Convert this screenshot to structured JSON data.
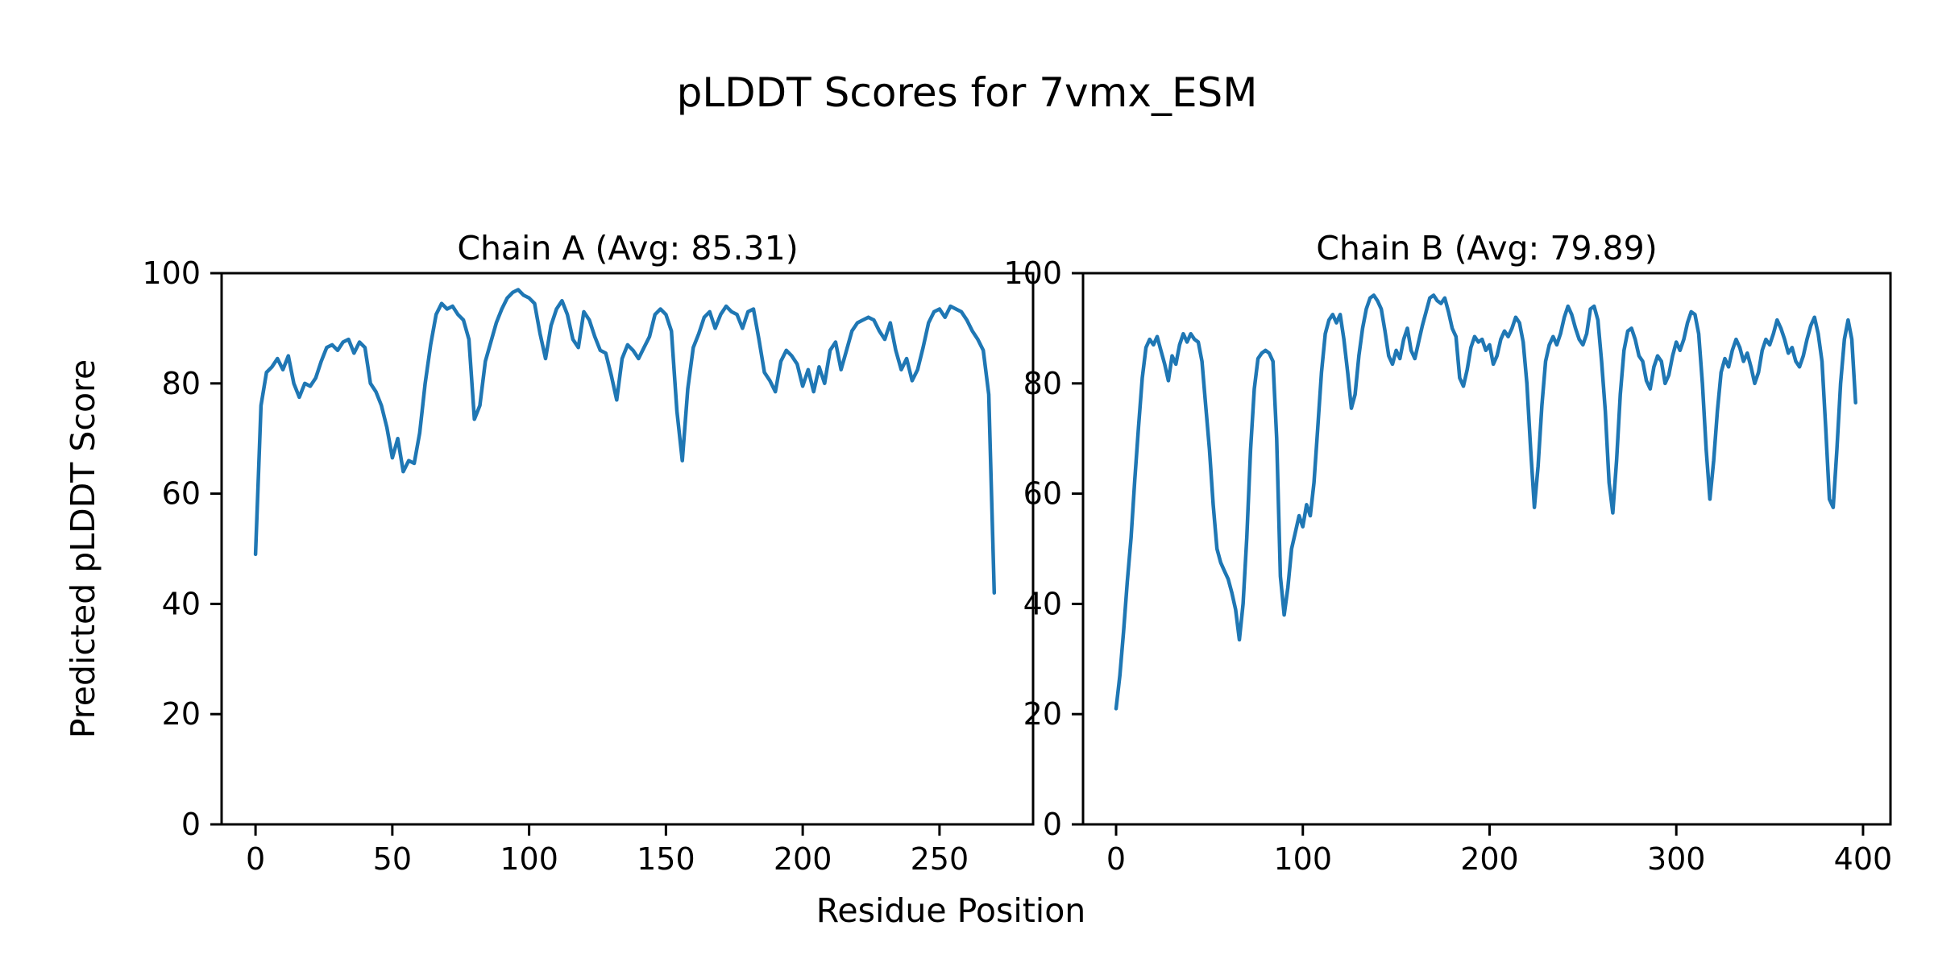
{
  "figure": {
    "title": "pLDDT Scores for 7vmx_ESM",
    "x_axis_label": "Residue Position",
    "y_axis_label": "Predicted pLDDT Score",
    "line_color": "#1f77b4",
    "text_color": "#000000"
  },
  "chart_data": [
    {
      "type": "line",
      "chain": "A",
      "title": "Chain A (Avg: 85.31)",
      "avg": 85.31,
      "xlabel": "Residue Position",
      "ylabel": "Predicted pLDDT Score",
      "grid": false,
      "legend": null,
      "x_start": 0,
      "x_step": 2,
      "xlim": [
        -12.4,
        284.2
      ],
      "ylim": [
        0,
        100
      ],
      "xticks": [
        0,
        50,
        100,
        150,
        200,
        250
      ],
      "yticks": [
        0,
        20,
        40,
        60,
        80,
        100
      ],
      "y": [
        49,
        76,
        82,
        83,
        84.5,
        82.5,
        85,
        80,
        77.5,
        80,
        79.5,
        81,
        84,
        86.5,
        87,
        86,
        87.5,
        88,
        85.5,
        87.5,
        86.5,
        80,
        78.5,
        76,
        72,
        66.5,
        70,
        64,
        66,
        65.5,
        71,
        80,
        87,
        92.5,
        94.5,
        93.5,
        94,
        92.5,
        91.5,
        88,
        73.5,
        76,
        84,
        87.5,
        91,
        93.5,
        95.5,
        96.5,
        97,
        96,
        95.5,
        94.5,
        89,
        84.5,
        90.5,
        93.5,
        95,
        92.5,
        88,
        86.5,
        93,
        91.5,
        88.5,
        86,
        85.5,
        81.5,
        77,
        84.5,
        87,
        86,
        84.5,
        86.5,
        88.5,
        92.5,
        93.5,
        92.5,
        89.5,
        75,
        66,
        79,
        86.5,
        89,
        92,
        93,
        90,
        92.5,
        94,
        93,
        92.5,
        90,
        93,
        93.5,
        88,
        82,
        80.5,
        78.5,
        84,
        86,
        85,
        83.5,
        79.5,
        82.5,
        78.5,
        83,
        80,
        86,
        87.5,
        82.5,
        86,
        89.5,
        91,
        91.5,
        92,
        91.5,
        89.5,
        88,
        91,
        86,
        82.5,
        84.5,
        80.5,
        82.5,
        86.5,
        91,
        93,
        93.5,
        92,
        94,
        93.5,
        93,
        91.5,
        89.5,
        88,
        86,
        78,
        42
      ]
    },
    {
      "type": "line",
      "chain": "B",
      "title": "Chain B (Avg: 79.89)",
      "avg": 79.89,
      "xlabel": "Residue Position",
      "ylabel": "Predicted pLDDT Score",
      "grid": false,
      "legend": null,
      "x_start": 0,
      "x_step": 2,
      "xlim": [
        -17.7,
        414.7
      ],
      "ylim": [
        0,
        100
      ],
      "xticks": [
        0,
        100,
        200,
        300,
        400
      ],
      "yticks": [
        0,
        20,
        40,
        60,
        80,
        100
      ],
      "y": [
        21,
        27,
        35,
        44,
        52,
        62.5,
        72,
        81,
        86.5,
        88,
        87,
        88.5,
        86,
        83.5,
        80.5,
        85,
        83.5,
        87,
        89,
        87.5,
        89,
        88,
        87.5,
        84,
        76,
        68,
        58,
        50,
        47.5,
        46,
        44.5,
        42,
        39,
        33.5,
        40,
        52,
        68,
        79,
        84.5,
        85.5,
        86,
        85.5,
        84,
        70,
        45,
        38,
        43,
        50,
        53,
        56,
        54,
        58,
        56,
        62,
        72,
        82,
        89,
        91.5,
        92.5,
        91,
        92.5,
        88,
        82,
        75.5,
        78,
        85,
        90,
        93.5,
        95.5,
        96,
        95,
        93.5,
        89.5,
        85,
        83.5,
        86,
        84.5,
        88,
        90,
        86,
        84.5,
        87.5,
        90.5,
        93,
        95.5,
        96,
        95,
        94.5,
        95.5,
        93,
        90,
        88.5,
        81,
        79.5,
        82.5,
        86.5,
        88.5,
        87.5,
        88,
        86,
        87,
        83.5,
        85,
        88,
        89.5,
        88.5,
        90,
        92,
        91,
        87.5,
        80,
        68,
        57.5,
        65,
        76,
        84,
        87,
        88.5,
        87,
        89,
        92,
        94,
        92.5,
        90,
        88,
        87,
        89,
        93.5,
        94,
        91.5,
        84,
        75,
        62,
        56.5,
        66,
        78,
        86,
        89.5,
        90,
        88,
        85,
        84,
        80.5,
        79,
        83,
        85,
        84,
        80,
        81.5,
        85,
        87.5,
        86,
        88,
        91,
        93,
        92.5,
        89,
        80,
        68,
        59,
        66,
        75,
        82,
        84.5,
        83,
        86,
        88,
        86.5,
        84,
        85.5,
        83,
        80,
        82,
        86,
        88,
        87,
        89,
        91.5,
        90,
        88,
        85.5,
        86.5,
        84,
        83,
        85,
        88,
        90.5,
        92,
        89,
        84,
        72,
        59,
        57.5,
        68,
        80,
        88,
        91.5,
        88,
        76.5
      ]
    }
  ]
}
